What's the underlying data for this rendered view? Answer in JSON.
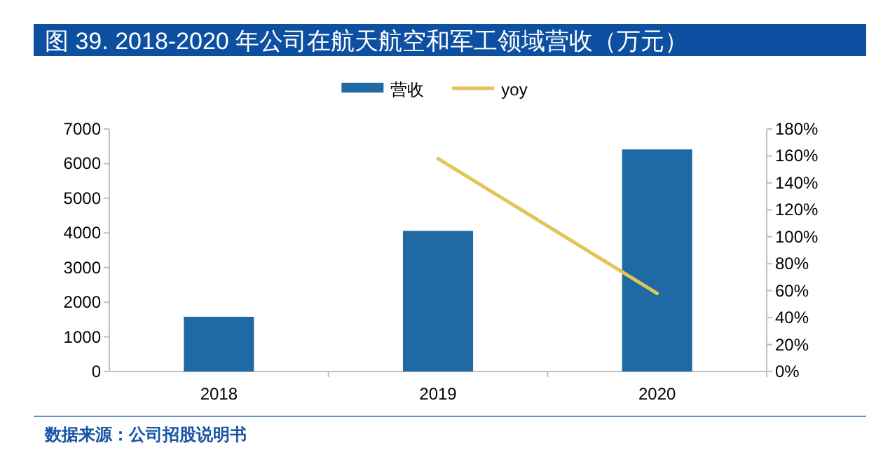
{
  "chart_data": {
    "type": "bar",
    "title": "图 39. 2018-2020 年公司在航天航空和军工领域营收（万元）",
    "categories": [
      "2018",
      "2019",
      "2020"
    ],
    "series": [
      {
        "name": "营收",
        "color": "#1f6aa5",
        "values": [
          1580,
          4060,
          6410
        ]
      },
      {
        "name": "yoy",
        "type": "line",
        "axis": "y2",
        "color": "#e3c45a",
        "values": [
          null,
          158,
          58
        ]
      }
    ],
    "ylim": [
      0,
      7000
    ],
    "yticks": [
      0,
      1000,
      2000,
      3000,
      4000,
      5000,
      6000,
      7000
    ],
    "y2lim": [
      0,
      180
    ],
    "y2ticks": [
      {
        "value": 0,
        "label": "0%"
      },
      {
        "value": 20,
        "label": "20%"
      },
      {
        "value": 40,
        "label": "40%"
      },
      {
        "value": 60,
        "label": "60%"
      },
      {
        "value": 80,
        "label": "80%"
      },
      {
        "value": 100,
        "label": "100%"
      },
      {
        "value": 120,
        "label": "120%"
      },
      {
        "value": 140,
        "label": "140%"
      },
      {
        "value": 160,
        "label": "160%"
      },
      {
        "value": 180,
        "label": "180%"
      }
    ],
    "legend": "top",
    "annotations": [
      "数据来源：公司招股说明书"
    ]
  }
}
